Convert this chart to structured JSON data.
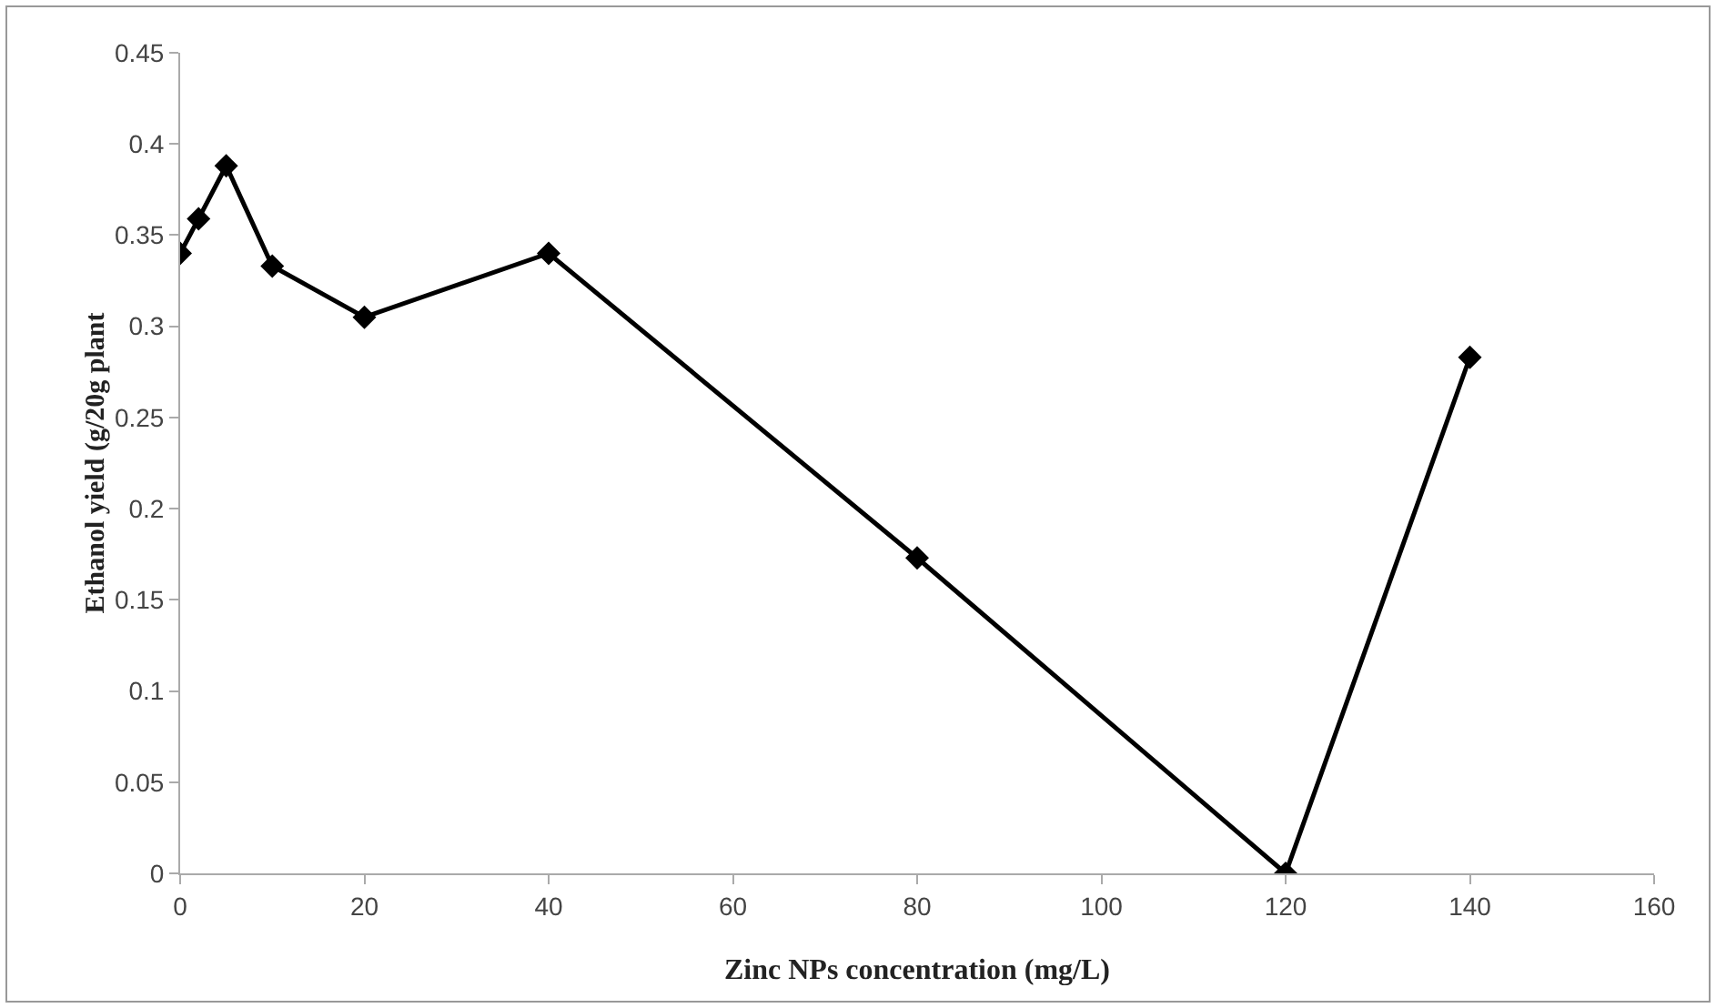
{
  "chart_data": {
    "type": "line",
    "xlabel": "Zinc NPs concentration (mg/L)",
    "ylabel": "Ethanol yield (g/20g plant",
    "x": [
      0,
      2,
      5,
      10,
      20,
      40,
      80,
      120,
      140
    ],
    "series": [
      {
        "color": "#000000",
        "values": [
          0.34,
          0.359,
          0.388,
          0.333,
          0.305,
          0.34,
          0.173,
          0,
          0.283
        ]
      }
    ],
    "xlim": [
      0,
      160
    ],
    "xticks": [
      0,
      20,
      40,
      60,
      80,
      100,
      120,
      140,
      160
    ],
    "ylim": [
      0,
      0.45
    ],
    "yticks": [
      0,
      0.05,
      0.1,
      0.15,
      0.2,
      0.25,
      0.3,
      0.35,
      0.4,
      0.45
    ],
    "grid": false,
    "marker": "diamond",
    "line_style": "solid"
  }
}
